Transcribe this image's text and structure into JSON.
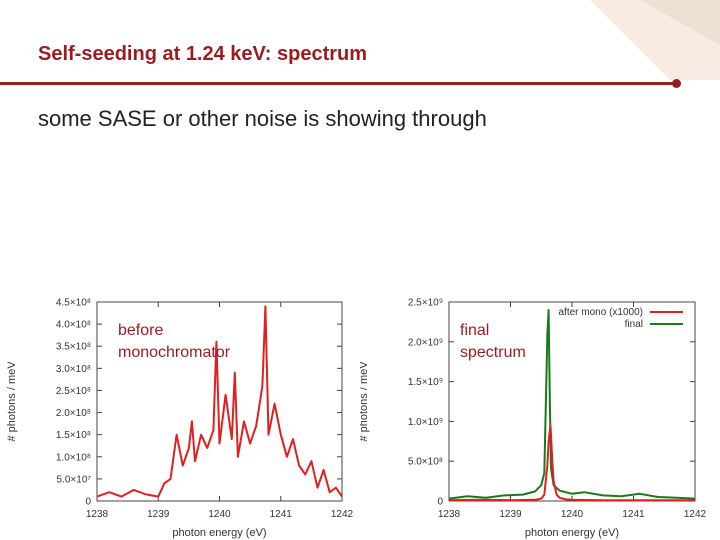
{
  "slide": {
    "title": "Self-seeding at 1.24 keV:  spectrum",
    "subtitle": "some SASE or other noise is showing through",
    "accent_color": "#9b1c1f"
  },
  "chart_data": [
    {
      "type": "line",
      "title": "",
      "annotation": [
        "before",
        "monochromator"
      ],
      "xlabel": "photon energy (eV)",
      "ylabel": "# photons / meV",
      "xlim": [
        1238,
        1242
      ],
      "ylim": [
        0,
        450000000.0
      ],
      "xticks": [
        "1238",
        "1239",
        "1240",
        "1241",
        "1242"
      ],
      "yticks": [
        "0",
        "5.0×10⁷",
        "1.0×10⁸",
        "1.5×10⁸",
        "2.0×10⁸",
        "2.5×10⁸",
        "3.0×10⁸",
        "3.5×10⁸",
        "4.0×10⁸",
        "4.5×10⁸"
      ],
      "grid": false,
      "series": [
        {
          "color": "#e02020",
          "x": [
            1238.0,
            1238.2,
            1238.4,
            1238.6,
            1238.8,
            1239.0,
            1239.1,
            1239.2,
            1239.3,
            1239.4,
            1239.5,
            1239.55,
            1239.6,
            1239.7,
            1239.8,
            1239.9,
            1239.95,
            1240.0,
            1240.1,
            1240.2,
            1240.25,
            1240.3,
            1240.4,
            1240.5,
            1240.6,
            1240.7,
            1240.75,
            1240.8,
            1240.9,
            1241.0,
            1241.1,
            1241.2,
            1241.3,
            1241.4,
            1241.5,
            1241.6,
            1241.7,
            1241.8,
            1241.9,
            1242.0
          ],
          "y": [
            10000000.0,
            20000000.0,
            10000000.0,
            25000000.0,
            15000000.0,
            10000000.0,
            40000000.0,
            50000000.0,
            150000000.0,
            80000000.0,
            120000000.0,
            180000000.0,
            90000000.0,
            150000000.0,
            120000000.0,
            160000000.0,
            360000000.0,
            130000000.0,
            240000000.0,
            140000000.0,
            290000000.0,
            100000000.0,
            180000000.0,
            130000000.0,
            170000000.0,
            260000000.0,
            440000000.0,
            150000000.0,
            220000000.0,
            150000000.0,
            100000000.0,
            140000000.0,
            80000000.0,
            60000000.0,
            90000000.0,
            30000000.0,
            70000000.0,
            20000000.0,
            30000000.0,
            10000000.0
          ]
        }
      ]
    },
    {
      "type": "line",
      "title": "",
      "annotation": [
        "final",
        "spectrum"
      ],
      "xlabel": "photon energy (eV)",
      "ylabel": "# photons / meV",
      "xlim": [
        1238,
        1242
      ],
      "ylim": [
        0,
        2500000000.0
      ],
      "xticks": [
        "1238",
        "1239",
        "1240",
        "1241",
        "1242"
      ],
      "yticks": [
        "0",
        "5.0×10⁸",
        "1.0×10⁹",
        "1.5×10⁹",
        "2.0×10⁹",
        "2.5×10⁹"
      ],
      "grid": false,
      "legend_position": "top-right",
      "series": [
        {
          "name": "after mono (x1000)",
          "color": "#e02020",
          "x": [
            1238.0,
            1238.5,
            1239.0,
            1239.4,
            1239.5,
            1239.55,
            1239.6,
            1239.62,
            1239.65,
            1239.68,
            1239.7,
            1239.75,
            1239.8,
            1239.9,
            1240.0,
            1240.5,
            1241.0,
            1241.5,
            1242.0
          ],
          "y": [
            10000000.0,
            15000000.0,
            10000000.0,
            15000000.0,
            30000000.0,
            80000000.0,
            450000000.0,
            750000000.0,
            950000000.0,
            500000000.0,
            250000000.0,
            80000000.0,
            40000000.0,
            20000000.0,
            15000000.0,
            10000000.0,
            10000000.0,
            10000000.0,
            10000000.0
          ]
        },
        {
          "name": "final",
          "color": "#1a7a1a",
          "x": [
            1238.0,
            1238.3,
            1238.6,
            1238.9,
            1239.2,
            1239.4,
            1239.5,
            1239.55,
            1239.6,
            1239.62,
            1239.64,
            1239.66,
            1239.7,
            1239.8,
            1240.0,
            1240.2,
            1240.5,
            1240.8,
            1241.1,
            1241.4,
            1241.7,
            1242.0
          ],
          "y": [
            30000000.0,
            60000000.0,
            40000000.0,
            70000000.0,
            80000000.0,
            120000000.0,
            200000000.0,
            350000000.0,
            2100000000.0,
            2400000000.0,
            1200000000.0,
            400000000.0,
            200000000.0,
            130000000.0,
            90000000.0,
            110000000.0,
            70000000.0,
            60000000.0,
            90000000.0,
            50000000.0,
            40000000.0,
            30000000.0
          ]
        }
      ]
    }
  ]
}
